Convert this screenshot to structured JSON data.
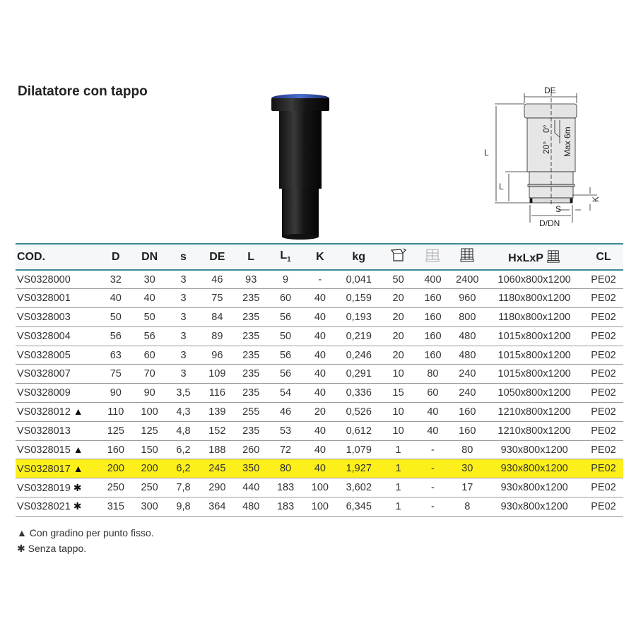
{
  "title": "Dilatatore con tappo",
  "diagram": {
    "de": "DE",
    "l": "L",
    "l1": "L",
    "k": "K",
    "s": "S",
    "d_dn": "D/DN",
    "angle_20": "20°",
    "angle_0": "0°",
    "max": "Max 6m"
  },
  "table": {
    "headers": [
      "COD.",
      "D",
      "DN",
      "s",
      "DE",
      "L",
      "L",
      "K",
      "kg",
      "",
      "",
      "",
      "HxLxP",
      ""
    ],
    "header_cl": "CL",
    "header_l1_sub": "1",
    "header_icons": [
      "box-icon",
      "pallet-layer-icon",
      "pallet-icon",
      "pallet-icon"
    ],
    "highlight_color": "#fdf01a",
    "rows": [
      {
        "cod": "VS0328000",
        "mark": "",
        "d": "32",
        "dn": "30",
        "s": "3",
        "de": "46",
        "l": "93",
        "l1": "9",
        "k": "-",
        "kg": "0,041",
        "box": "50",
        "layer": "400",
        "pallet": "2400",
        "hxlxp": "1060x800x1200",
        "cl": "PE02"
      },
      {
        "cod": "VS0328001",
        "mark": "",
        "d": "40",
        "dn": "40",
        "s": "3",
        "de": "75",
        "l": "235",
        "l1": "60",
        "k": "40",
        "kg": "0,159",
        "box": "20",
        "layer": "160",
        "pallet": "960",
        "hxlxp": "1180x800x1200",
        "cl": "PE02"
      },
      {
        "cod": "VS0328003",
        "mark": "",
        "d": "50",
        "dn": "50",
        "s": "3",
        "de": "84",
        "l": "235",
        "l1": "56",
        "k": "40",
        "kg": "0,193",
        "box": "20",
        "layer": "160",
        "pallet": "800",
        "hxlxp": "1180x800x1200",
        "cl": "PE02"
      },
      {
        "cod": "VS0328004",
        "mark": "",
        "d": "56",
        "dn": "56",
        "s": "3",
        "de": "89",
        "l": "235",
        "l1": "50",
        "k": "40",
        "kg": "0,219",
        "box": "20",
        "layer": "160",
        "pallet": "480",
        "hxlxp": "1015x800x1200",
        "cl": "PE02"
      },
      {
        "cod": "VS0328005",
        "mark": "",
        "d": "63",
        "dn": "60",
        "s": "3",
        "de": "96",
        "l": "235",
        "l1": "56",
        "k": "40",
        "kg": "0,246",
        "box": "20",
        "layer": "160",
        "pallet": "480",
        "hxlxp": "1015x800x1200",
        "cl": "PE02"
      },
      {
        "cod": "VS0328007",
        "mark": "",
        "d": "75",
        "dn": "70",
        "s": "3",
        "de": "109",
        "l": "235",
        "l1": "56",
        "k": "40",
        "kg": "0,291",
        "box": "10",
        "layer": "80",
        "pallet": "240",
        "hxlxp": "1015x800x1200",
        "cl": "PE02"
      },
      {
        "cod": "VS0328009",
        "mark": "",
        "d": "90",
        "dn": "90",
        "s": "3,5",
        "de": "116",
        "l": "235",
        "l1": "54",
        "k": "40",
        "kg": "0,336",
        "box": "15",
        "layer": "60",
        "pallet": "240",
        "hxlxp": "1050x800x1200",
        "cl": "PE02"
      },
      {
        "cod": "VS0328012",
        "mark": "▲",
        "d": "110",
        "dn": "100",
        "s": "4,3",
        "de": "139",
        "l": "255",
        "l1": "46",
        "k": "20",
        "kg": "0,526",
        "box": "10",
        "layer": "40",
        "pallet": "160",
        "hxlxp": "1210x800x1200",
        "cl": "PE02"
      },
      {
        "cod": "VS0328013",
        "mark": "",
        "d": "125",
        "dn": "125",
        "s": "4,8",
        "de": "152",
        "l": "235",
        "l1": "53",
        "k": "40",
        "kg": "0,612",
        "box": "10",
        "layer": "40",
        "pallet": "160",
        "hxlxp": "1210x800x1200",
        "cl": "PE02"
      },
      {
        "cod": "VS0328015",
        "mark": "▲",
        "d": "160",
        "dn": "150",
        "s": "6,2",
        "de": "188",
        "l": "260",
        "l1": "72",
        "k": "40",
        "kg": "1,079",
        "box": "1",
        "layer": "-",
        "pallet": "80",
        "hxlxp": "930x800x1200",
        "cl": "PE02"
      },
      {
        "cod": "VS0328017",
        "mark": "▲",
        "d": "200",
        "dn": "200",
        "s": "6,2",
        "de": "245",
        "l": "350",
        "l1": "80",
        "k": "40",
        "kg": "1,927",
        "box": "1",
        "layer": "-",
        "pallet": "30",
        "hxlxp": "930x800x1200",
        "cl": "PE02",
        "highlighted": true
      },
      {
        "cod": "VS0328019",
        "mark": "✱",
        "d": "250",
        "dn": "250",
        "s": "7,8",
        "de": "290",
        "l": "440",
        "l1": "183",
        "k": "100",
        "kg": "3,602",
        "box": "1",
        "layer": "-",
        "pallet": "17",
        "hxlxp": "930x800x1200",
        "cl": "PE02"
      },
      {
        "cod": "VS0328021",
        "mark": "✱",
        "d": "315",
        "dn": "300",
        "s": "9,8",
        "de": "364",
        "l": "480",
        "l1": "183",
        "k": "100",
        "kg": "6,345",
        "box": "1",
        "layer": "-",
        "pallet": "8",
        "hxlxp": "930x800x1200",
        "cl": "PE02"
      }
    ]
  },
  "notes": [
    {
      "symbol": "▲",
      "text": "Con gradino per punto fisso."
    },
    {
      "symbol": "✱",
      "text": "Senza tappo."
    }
  ]
}
